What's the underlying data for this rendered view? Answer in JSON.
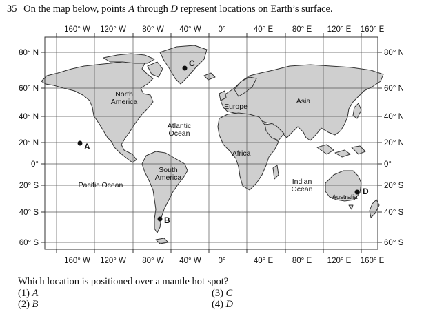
{
  "question": {
    "number": "35",
    "text_before": "On the map below, points",
    "point_first": "A",
    "text_middle": "through",
    "point_last": "D",
    "text_after": "represent locations on Earth’s surface."
  },
  "map": {
    "longitude_labels": [
      "160° W",
      "120° W",
      "80° W",
      "40° W",
      "0°",
      "40° E",
      "80° E",
      "120° E",
      "160° E"
    ],
    "latitude_labels_left": [
      "80° N",
      "60° N",
      "40° N",
      "20° N",
      "0°",
      "20° S",
      "40° S",
      "60° S"
    ],
    "latitude_labels_right": [
      "80° N",
      "60° N",
      "40° N",
      "20° N",
      "0°",
      "20° S",
      "40° S",
      "60° S"
    ],
    "region_labels": {
      "north_america_1": "North",
      "north_america_2": "America",
      "south_america_1": "South",
      "south_america_2": "America",
      "europe": "Europe",
      "asia": "Asia",
      "africa": "Africa",
      "australia": "Australia",
      "atlantic_1": "Atlantic",
      "atlantic_2": "Ocean",
      "indian_1": "Indian",
      "indian_2": "Ocean",
      "pacific": "Pacific Ocean"
    },
    "points": [
      {
        "label": "A",
        "lon": -155,
        "lat": 20
      },
      {
        "label": "B",
        "lon": -73,
        "lat": -45
      },
      {
        "label": "C",
        "lon": -35,
        "lat": 75
      },
      {
        "label": "D",
        "lon": 153,
        "lat": -28
      }
    ],
    "colors": {
      "land": "#cfcfcf",
      "border": "#333333",
      "grid": "#555555",
      "point": "#111111"
    }
  },
  "prompt": "Which location is positioned over a mantle hot spot?",
  "choices": [
    {
      "num": "(1)",
      "letter": "A"
    },
    {
      "num": "(2)",
      "letter": "B"
    },
    {
      "num": "(3)",
      "letter": "C"
    },
    {
      "num": "(4)",
      "letter": "D"
    }
  ]
}
